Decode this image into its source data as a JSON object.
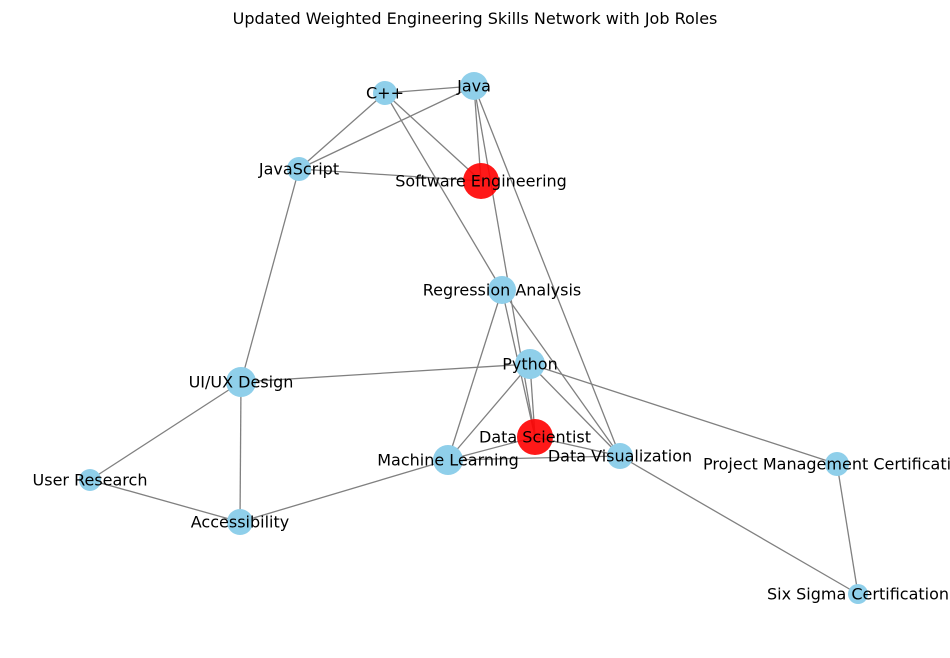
{
  "title": "Updated Weighted Engineering Skills Network with Job Roles",
  "colors": {
    "skill_node": "#8fcfea",
    "role_node": "#ff0000",
    "edge": "#808080"
  },
  "nodes": [
    {
      "id": "cpp",
      "label": "C++",
      "type": "skill"
    },
    {
      "id": "java",
      "label": "Java",
      "type": "skill"
    },
    {
      "id": "javascript",
      "label": "JavaScript",
      "type": "skill"
    },
    {
      "id": "software_engineering",
      "label": "Software Engineering",
      "type": "role"
    },
    {
      "id": "regression_analysis",
      "label": "Regression Analysis",
      "type": "skill"
    },
    {
      "id": "python",
      "label": "Python",
      "type": "skill"
    },
    {
      "id": "ui_ux_design",
      "label": "UI/UX Design",
      "type": "skill"
    },
    {
      "id": "data_scientist",
      "label": "Data Scientist",
      "type": "role"
    },
    {
      "id": "machine_learning",
      "label": "Machine Learning",
      "type": "skill"
    },
    {
      "id": "data_visualization",
      "label": "Data Visualization",
      "type": "skill"
    },
    {
      "id": "project_management",
      "label": "Project Management Certification",
      "type": "skill"
    },
    {
      "id": "user_research",
      "label": "User Research",
      "type": "skill"
    },
    {
      "id": "accessibility",
      "label": "Accessibility",
      "type": "skill"
    },
    {
      "id": "six_sigma",
      "label": "Six Sigma Certification",
      "type": "skill"
    }
  ],
  "edges": [
    [
      "cpp",
      "java"
    ],
    [
      "cpp",
      "javascript"
    ],
    [
      "cpp",
      "software_engineering"
    ],
    [
      "cpp",
      "regression_analysis"
    ],
    [
      "java",
      "javascript"
    ],
    [
      "java",
      "software_engineering"
    ],
    [
      "java",
      "data_scientist"
    ],
    [
      "java",
      "data_visualization"
    ],
    [
      "javascript",
      "software_engineering"
    ],
    [
      "javascript",
      "ui_ux_design"
    ],
    [
      "regression_analysis",
      "data_scientist"
    ],
    [
      "regression_analysis",
      "machine_learning"
    ],
    [
      "regression_analysis",
      "data_visualization"
    ],
    [
      "python",
      "ui_ux_design"
    ],
    [
      "python",
      "data_scientist"
    ],
    [
      "python",
      "machine_learning"
    ],
    [
      "python",
      "data_visualization"
    ],
    [
      "python",
      "project_management"
    ],
    [
      "data_scientist",
      "machine_learning"
    ],
    [
      "data_scientist",
      "data_visualization"
    ],
    [
      "machine_learning",
      "data_visualization"
    ],
    [
      "machine_learning",
      "accessibility"
    ],
    [
      "ui_ux_design",
      "user_research"
    ],
    [
      "ui_ux_design",
      "accessibility"
    ],
    [
      "user_research",
      "accessibility"
    ],
    [
      "data_visualization",
      "six_sigma"
    ],
    [
      "project_management",
      "six_sigma"
    ]
  ]
}
